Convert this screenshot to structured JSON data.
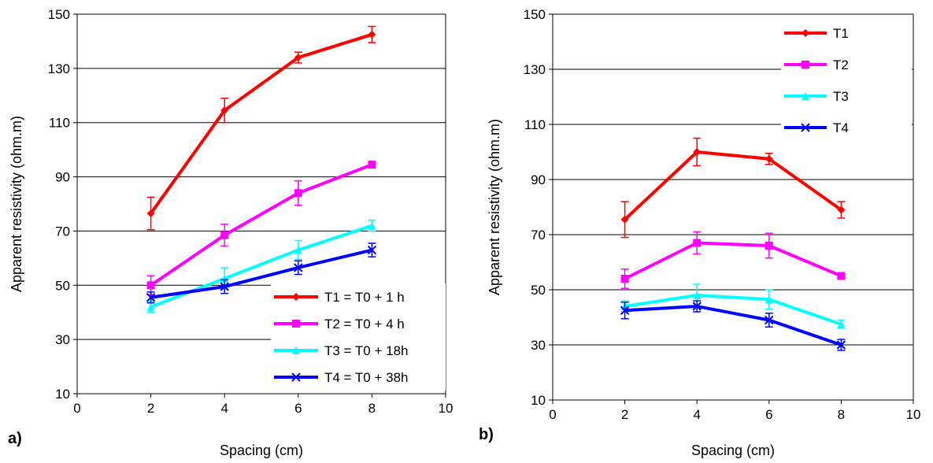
{
  "chart_data": [
    {
      "type": "line",
      "panel_label": "a)",
      "xlabel": "Spacing (cm)",
      "ylabel": "Apparent resistivity (ohm.m)",
      "xlim": [
        0,
        10
      ],
      "ylim": [
        10,
        150
      ],
      "xticks": [
        "0",
        "2",
        "4",
        "6",
        "8",
        "10"
      ],
      "yticks": [
        "10",
        "30",
        "50",
        "70",
        "90",
        "110",
        "130",
        "150"
      ],
      "grid": "horizontal",
      "legend_position": "bottom-right",
      "x": [
        2,
        4,
        6,
        8
      ],
      "series": [
        {
          "name": "T1 = T0 + 1 h",
          "color": "#FF0000",
          "marker": "diamond",
          "values": [
            76.5,
            114.5,
            134,
            142.5
          ],
          "err": [
            6,
            4.5,
            2,
            3
          ]
        },
        {
          "name": "T2 = T0 + 4 h",
          "color": "#FF00FF",
          "marker": "square",
          "values": [
            50,
            68.5,
            84,
            94.5
          ],
          "err": [
            3.5,
            4,
            4.5,
            1
          ]
        },
        {
          "name": "T3 = T0 + 18h",
          "color": "#00FFFF",
          "marker": "triangle",
          "values": [
            42,
            52.5,
            63,
            72
          ],
          "err": [
            2,
            4,
            3.5,
            2
          ]
        },
        {
          "name": "T4 = T0 + 38h",
          "color": "#0000FF",
          "marker": "x",
          "values": [
            45.5,
            49.5,
            56.5,
            63
          ],
          "err": [
            2,
            2.5,
            2.5,
            2.5
          ]
        }
      ]
    },
    {
      "type": "line",
      "panel_label": "b)",
      "xlabel": "Spacing (cm)",
      "ylabel": "Apparent resistivity (ohm.m)",
      "xlim": [
        0,
        10
      ],
      "ylim": [
        10,
        150
      ],
      "xticks": [
        "0",
        "2",
        "4",
        "6",
        "8",
        "10"
      ],
      "yticks": [
        "10",
        "30",
        "50",
        "70",
        "90",
        "110",
        "130",
        "150"
      ],
      "grid": "horizontal",
      "legend_position": "top-right",
      "x": [
        2,
        4,
        6,
        8
      ],
      "series": [
        {
          "name": "T1",
          "color": "#FF0000",
          "marker": "diamond",
          "values": [
            75.5,
            100,
            97.5,
            79
          ],
          "err": [
            6.5,
            5,
            2,
            3
          ]
        },
        {
          "name": "T2",
          "color": "#FF00FF",
          "marker": "square",
          "values": [
            54,
            67,
            66,
            55
          ],
          "err": [
            3.5,
            4,
            4.5,
            1
          ]
        },
        {
          "name": "T3",
          "color": "#00FFFF",
          "marker": "triangle",
          "values": [
            44,
            48,
            46.5,
            37.5
          ],
          "err": [
            2,
            4,
            3.5,
            1.5
          ]
        },
        {
          "name": "T4",
          "color": "#0000FF",
          "marker": "x",
          "values": [
            42.5,
            44,
            39,
            30
          ],
          "err": [
            3,
            2,
            2.5,
            2
          ]
        }
      ]
    }
  ]
}
